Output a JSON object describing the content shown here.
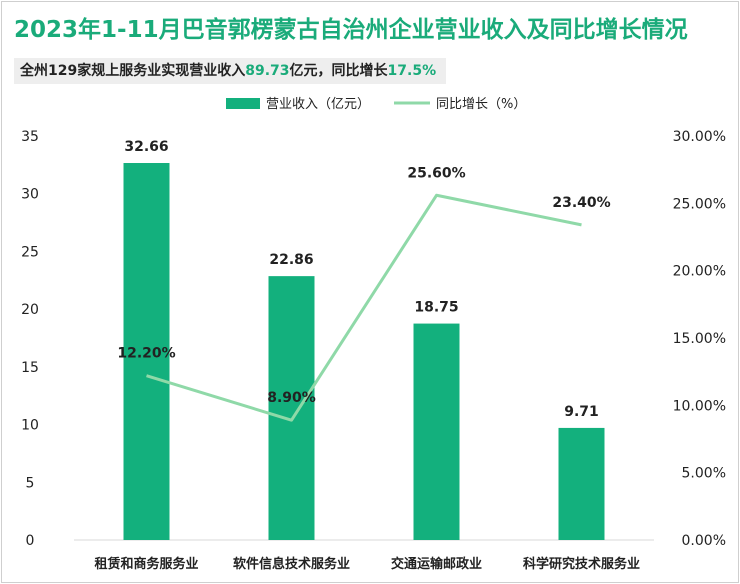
{
  "title": "2023年1-11月巴音郭楞蒙古自治州企业营业收入及同比增长情况",
  "subtitle": {
    "prefix": "全州129家规上服务业实现营业收入",
    "value1": "89.73",
    "mid": "亿元，同比增长",
    "value2": "17.5%"
  },
  "colors": {
    "bar": "#13b07d",
    "line": "#8fd9a8",
    "title": "#1aab7a"
  },
  "chart_data": {
    "type": "bar",
    "categories": [
      "租赁和商务服务业",
      "软件信息技术服务业",
      "交通运输邮政业",
      "科学研究技术服务业"
    ],
    "series": [
      {
        "name": "营业收入（亿元）",
        "type": "bar",
        "axis": "left",
        "values": [
          32.66,
          22.86,
          18.75,
          9.71
        ],
        "labels": [
          "32.66",
          "22.86",
          "18.75",
          "9.71"
        ]
      },
      {
        "name": "同比增长（%）",
        "type": "line",
        "axis": "right",
        "values": [
          12.2,
          8.9,
          25.6,
          23.4
        ],
        "labels": [
          "12.20%",
          "8.90%",
          "25.60%",
          "23.40%"
        ]
      }
    ],
    "y_left": {
      "min": 0,
      "max": 35,
      "step": 5,
      "ticks": [
        "0",
        "5",
        "10",
        "15",
        "20",
        "25",
        "30",
        "35"
      ]
    },
    "y_right": {
      "min": 0,
      "max": 30,
      "step": 5,
      "ticks": [
        "0.00%",
        "5.00%",
        "10.00%",
        "15.00%",
        "20.00%",
        "25.00%",
        "30.00%"
      ]
    },
    "legend_position": "top",
    "grid": false
  }
}
